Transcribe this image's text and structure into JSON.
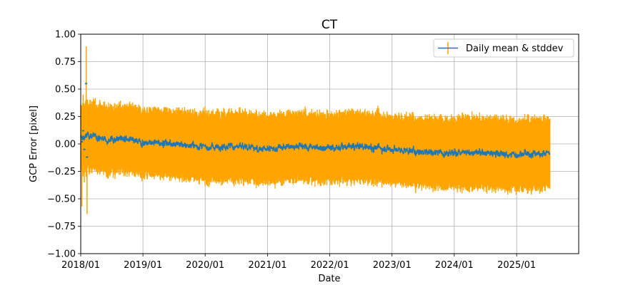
{
  "chart_data": {
    "type": "line",
    "title": "CT",
    "xlabel": "Date",
    "ylabel": "GCP Error [pixel]",
    "ylim": [
      -1.0,
      1.0
    ],
    "xlim": [
      "2018-01-01",
      "2025-12-31"
    ],
    "x_ticks": [
      "2018/01",
      "2019/01",
      "2020/01",
      "2021/01",
      "2022/01",
      "2023/01",
      "2024/01",
      "2025/01"
    ],
    "y_ticks": [
      "−1.00",
      "−0.75",
      "−0.50",
      "−0.25",
      "0.00",
      "0.25",
      "0.50",
      "0.75",
      "1.00"
    ],
    "grid": true,
    "legend_position": "top-right",
    "series": [
      {
        "name": "Daily mean & stddev",
        "line_color": "#1f77b4",
        "error_color": "#ffa500",
        "x_start": "2018-01-01",
        "x_end": "2025-07-15",
        "mean_points": [
          {
            "x": "2018-01-01",
            "y": 0.05
          },
          {
            "x": "2018-02-15",
            "y": 0.08
          },
          {
            "x": "2018-06-01",
            "y": 0.04
          },
          {
            "x": "2018-09-01",
            "y": 0.05
          },
          {
            "x": "2019-01-01",
            "y": 0.01
          },
          {
            "x": "2019-06-01",
            "y": 0.01
          },
          {
            "x": "2020-01-01",
            "y": -0.03
          },
          {
            "x": "2020-06-01",
            "y": -0.02
          },
          {
            "x": "2021-01-01",
            "y": -0.05
          },
          {
            "x": "2021-06-01",
            "y": -0.02
          },
          {
            "x": "2022-01-01",
            "y": -0.04
          },
          {
            "x": "2022-06-01",
            "y": -0.02
          },
          {
            "x": "2023-01-01",
            "y": -0.05
          },
          {
            "x": "2023-06-01",
            "y": -0.07
          },
          {
            "x": "2024-01-01",
            "y": -0.08
          },
          {
            "x": "2024-06-01",
            "y": -0.08
          },
          {
            "x": "2025-01-01",
            "y": -0.1
          },
          {
            "x": "2025-07-15",
            "y": -0.08
          }
        ],
        "stddev_points": [
          {
            "x": "2018-01-01",
            "y": 0.28
          },
          {
            "x": "2019-01-01",
            "y": 0.28
          },
          {
            "x": "2020-01-01",
            "y": 0.29
          },
          {
            "x": "2021-01-01",
            "y": 0.29
          },
          {
            "x": "2022-01-01",
            "y": 0.29
          },
          {
            "x": "2023-01-01",
            "y": 0.29
          },
          {
            "x": "2024-01-01",
            "y": 0.3
          },
          {
            "x": "2025-07-15",
            "y": 0.3
          }
        ],
        "early_spikes": [
          {
            "x": "2018-01-08",
            "low": -0.57,
            "high": 0.32,
            "mean": 0.02
          },
          {
            "x": "2018-01-22",
            "low": -0.35,
            "high": 0.35,
            "mean": -0.05
          },
          {
            "x": "2018-02-02",
            "low": -0.3,
            "high": 0.89,
            "mean": 0.55
          },
          {
            "x": "2018-02-07",
            "low": -0.64,
            "high": 0.38,
            "mean": -0.12
          },
          {
            "x": "2018-01-15",
            "low": -0.25,
            "high": 0.45,
            "mean": 0.12
          }
        ]
      }
    ]
  }
}
